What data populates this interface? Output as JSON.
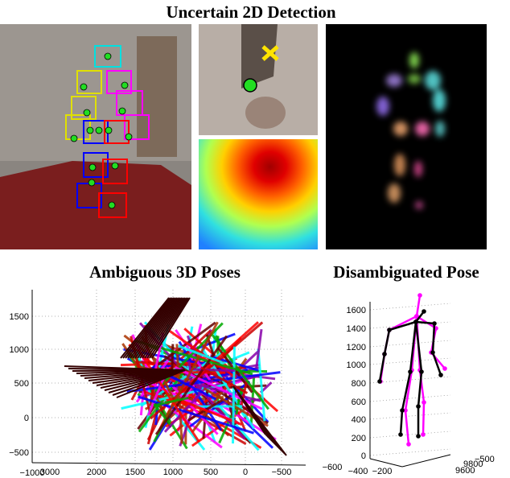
{
  "top": {
    "title": "Uncertain 2D Detection"
  },
  "ambiguous": {
    "title": "Ambiguous 3D Poses",
    "z_ticks": [
      "1500",
      "1000",
      "500",
      "0",
      "−500"
    ],
    "x_ticks": [
      "−1000",
      "3000",
      "2000",
      "1500",
      "1000",
      "500",
      "0",
      "−500"
    ]
  },
  "disambiguated": {
    "title": "Disambiguated Pose",
    "z_ticks": [
      "1600",
      "1400",
      "1200",
      "1000",
      "800",
      "600",
      "400",
      "200",
      "0"
    ],
    "x_ticks": [
      "−600",
      "−400",
      "−200"
    ],
    "depth_ticks": [
      "9600",
      "9800",
      "−500"
    ]
  }
}
